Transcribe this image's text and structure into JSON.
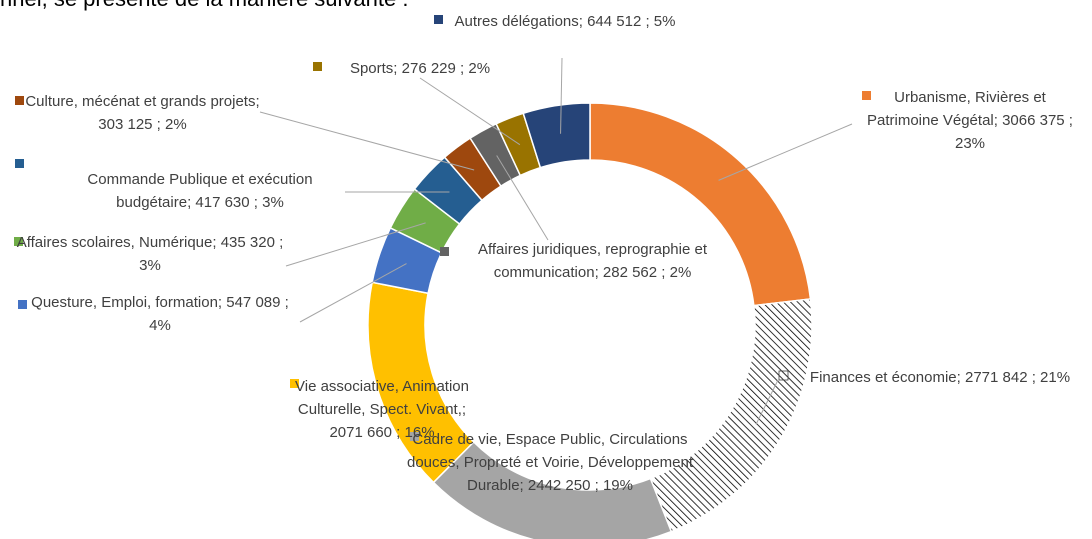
{
  "intro_text": "nnel, se présente de la manière suivante :",
  "chart_data": {
    "type": "donut",
    "labels": [
      "Urbanisme, Rivières et Patrimoine Végétal; 3066 375 ; 23%",
      "Finances et économie; 2771 842 ; 21%",
      "Cadre de vie, Espace Public, Circulations douces, Propreté et Voirie, Développement Durable; 2442 250 ; 19%",
      "Vie associative, Animation Culturelle, Spect. Vivant,; 2071 660 ; 16%",
      "Questure, Emploi, formation; 547 089 ; 4%",
      "Affaires scolaires, Numérique; 435 320 ; 3%",
      "Commande Publique et exécution budgétaire; 417 630 ; 3%",
      "Culture, mécénat et grands projets; 303 125 ; 2%",
      "Affaires juridiques, reprographie et communication; 282 562 ; 2%",
      "Sports; 276 229 ; 2%",
      "Autres délégations; 644 512 ; 5%"
    ],
    "values": [
      3066375,
      2771842,
      2442250,
      2071660,
      547089,
      435320,
      417630,
      303125,
      282562,
      276229,
      644512
    ],
    "colors": [
      "#ED7D31",
      "hatch",
      "#A5A5A5",
      "#FFC000",
      "#4472C4",
      "#70AD47",
      "#255E91",
      "#9E480E",
      "#636363",
      "#997300",
      "#264478"
    ]
  }
}
